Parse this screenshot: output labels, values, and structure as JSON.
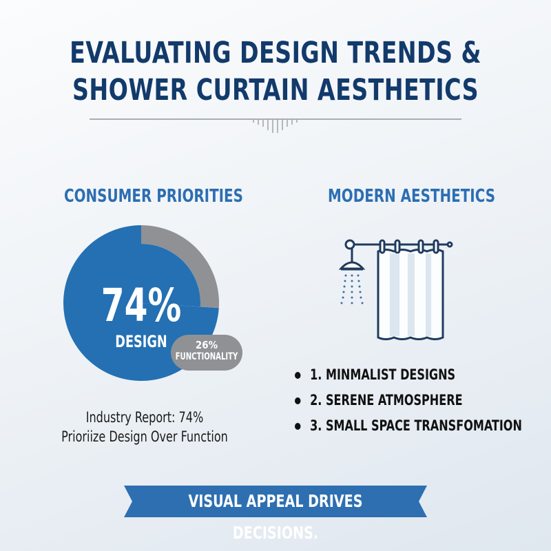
{
  "title": {
    "line1": "EVALUATING DESIGN TRENDS &",
    "line2": "SHOWER CURTAIN AESTHETICS"
  },
  "left_section": {
    "heading": "CONSUMER PRIORITIES",
    "main_value": "74%",
    "main_label": "DESIGN",
    "secondary_value": "26%",
    "secondary_label": "FUNCTIONALITY",
    "caption_line1": "Industry Report: 74%",
    "caption_line2": "Prioriize Design Over Function"
  },
  "right_section": {
    "heading": "MODERN AESTHETICS",
    "icon": "shower-curtain-icon",
    "items": [
      "1. MINMALIST DESIGNS",
      "2. SERENE ATMOSPHERE",
      "3. SMALL SPACE TRANSFOMATION"
    ]
  },
  "banner": {
    "text": "VISUAL APPEAL DRIVES DECISIONS."
  },
  "colors": {
    "title": "#123a6b",
    "accent": "#2c6eb2",
    "blue_slice": "#2470b3",
    "gray_slice": "#8f9195",
    "banner": "#2d6fb1"
  },
  "chart_data": {
    "type": "pie",
    "categories": [
      "DESIGN",
      "FUNCTIONALITY"
    ],
    "values": [
      74,
      26
    ],
    "colors": [
      "#2470b3",
      "#8f9195"
    ]
  }
}
